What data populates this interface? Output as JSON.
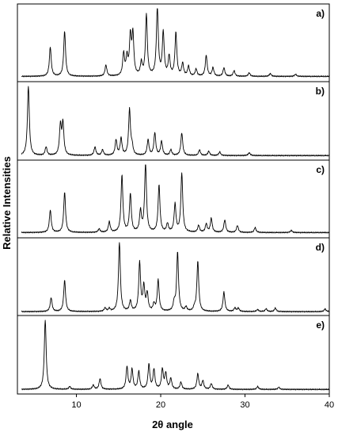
{
  "chart_data": {
    "type": "line",
    "xlabel": "2θ angle",
    "ylabel": "Relative Intensities",
    "xlim": [
      3,
      40
    ],
    "xticks": [
      10,
      20,
      30,
      40
    ],
    "x_tick_labels": [
      "10",
      "20",
      "30",
      "40"
    ],
    "grid": false,
    "legend": "none",
    "line_color": "#000000",
    "axis_color": "#000000",
    "series": [
      {
        "name": "a)",
        "baseline": 0.03,
        "peaks": [
          [
            6.9,
            0.42
          ],
          [
            8.6,
            0.65
          ],
          [
            13.5,
            0.16
          ],
          [
            15.6,
            0.32
          ],
          [
            16.0,
            0.25
          ],
          [
            16.4,
            0.55
          ],
          [
            16.7,
            0.58
          ],
          [
            17.7,
            0.18
          ],
          [
            18.3,
            0.88
          ],
          [
            19.6,
            1.0
          ],
          [
            20.3,
            0.62
          ],
          [
            21.0,
            0.28
          ],
          [
            21.8,
            0.62
          ],
          [
            22.6,
            0.18
          ],
          [
            23.3,
            0.14
          ],
          [
            24.2,
            0.1
          ],
          [
            25.4,
            0.3
          ],
          [
            26.2,
            0.12
          ],
          [
            27.5,
            0.12
          ],
          [
            28.7,
            0.08
          ],
          [
            30.5,
            0.05
          ],
          [
            33.0,
            0.04
          ],
          [
            36.0,
            0.03
          ]
        ]
      },
      {
        "name": "b)",
        "baseline": 0.02,
        "peaks": [
          [
            4.3,
            1.0
          ],
          [
            6.4,
            0.12
          ],
          [
            8.1,
            0.42
          ],
          [
            8.4,
            0.45
          ],
          [
            12.2,
            0.12
          ],
          [
            13.1,
            0.08
          ],
          [
            14.7,
            0.22
          ],
          [
            15.3,
            0.24
          ],
          [
            16.3,
            0.65
          ],
          [
            16.6,
            0.12
          ],
          [
            18.5,
            0.22
          ],
          [
            19.3,
            0.32
          ],
          [
            20.1,
            0.2
          ],
          [
            21.2,
            0.08
          ],
          [
            22.5,
            0.32
          ],
          [
            24.6,
            0.08
          ],
          [
            25.7,
            0.06
          ],
          [
            27.0,
            0.05
          ],
          [
            30.5,
            0.04
          ]
        ]
      },
      {
        "name": "c)",
        "baseline": 0.03,
        "peaks": [
          [
            6.9,
            0.32
          ],
          [
            8.6,
            0.58
          ],
          [
            12.7,
            0.05
          ],
          [
            13.9,
            0.15
          ],
          [
            15.4,
            0.82
          ],
          [
            16.4,
            0.55
          ],
          [
            17.6,
            0.3
          ],
          [
            18.2,
            1.0
          ],
          [
            19.8,
            0.68
          ],
          [
            20.8,
            0.12
          ],
          [
            21.7,
            0.4
          ],
          [
            22.5,
            0.85
          ],
          [
            24.5,
            0.1
          ],
          [
            25.4,
            0.12
          ],
          [
            26.0,
            0.2
          ],
          [
            27.6,
            0.18
          ],
          [
            29.1,
            0.1
          ],
          [
            31.2,
            0.07
          ],
          [
            35.5,
            0.03
          ]
        ]
      },
      {
        "name": "d)",
        "baseline": 0.01,
        "peaks": [
          [
            7.0,
            0.2
          ],
          [
            8.6,
            0.45
          ],
          [
            13.4,
            0.05
          ],
          [
            13.9,
            0.04
          ],
          [
            15.1,
            1.0
          ],
          [
            16.4,
            0.15
          ],
          [
            17.5,
            0.7
          ],
          [
            18.0,
            0.35
          ],
          [
            18.4,
            0.25
          ],
          [
            19.2,
            0.1
          ],
          [
            19.7,
            0.45
          ],
          [
            21.6,
            0.12
          ],
          [
            22.0,
            0.85
          ],
          [
            23.0,
            0.06
          ],
          [
            24.0,
            0.05
          ],
          [
            24.4,
            0.72
          ],
          [
            27.5,
            0.28
          ],
          [
            28.8,
            0.05
          ],
          [
            29.2,
            0.05
          ],
          [
            31.5,
            0.03
          ],
          [
            32.5,
            0.04
          ],
          [
            33.6,
            0.05
          ],
          [
            39.5,
            0.04
          ]
        ]
      },
      {
        "name": "e)",
        "baseline": 0.02,
        "peaks": [
          [
            6.3,
            1.0
          ],
          [
            9.2,
            0.04
          ],
          [
            12.0,
            0.06
          ],
          [
            12.8,
            0.15
          ],
          [
            16.0,
            0.32
          ],
          [
            16.6,
            0.28
          ],
          [
            17.4,
            0.25
          ],
          [
            18.6,
            0.35
          ],
          [
            19.2,
            0.28
          ],
          [
            20.2,
            0.28
          ],
          [
            20.6,
            0.22
          ],
          [
            21.2,
            0.15
          ],
          [
            22.4,
            0.1
          ],
          [
            24.4,
            0.22
          ],
          [
            25.0,
            0.12
          ],
          [
            26.0,
            0.08
          ],
          [
            28.0,
            0.06
          ],
          [
            31.5,
            0.04
          ],
          [
            34.0,
            0.03
          ]
        ]
      }
    ]
  }
}
